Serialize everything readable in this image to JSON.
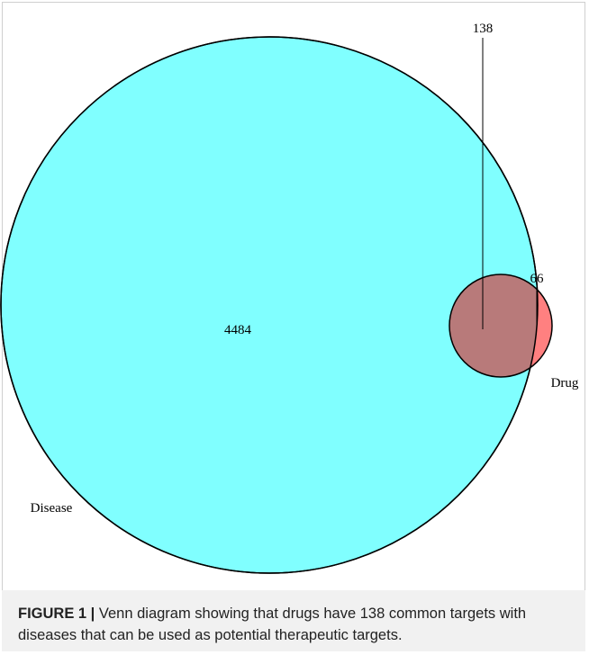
{
  "diagram": {
    "counts": {
      "common": "138",
      "drug_only": "66",
      "disease_only": "4484"
    },
    "labels": {
      "drug": "Drug",
      "disease": "Disease"
    }
  },
  "caption": {
    "label": "FIGURE 1 |",
    "text": "Venn diagram showing that drugs have 138 common targets with diseases that can be used as potential therapeutic targets."
  }
}
